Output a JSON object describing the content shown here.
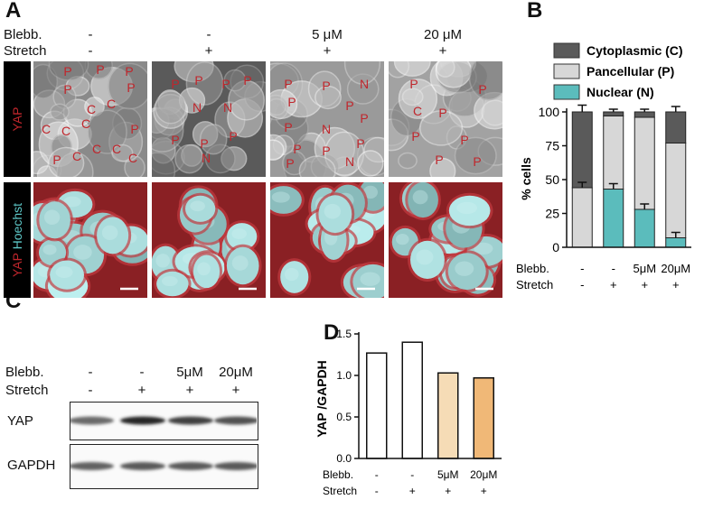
{
  "panels": {
    "a": "A",
    "b": "B",
    "c": "C",
    "d": "D"
  },
  "conditions": {
    "blebb_label": "Blebb.",
    "stretch_label": "Stretch",
    "blebb": [
      "-",
      "-",
      "5 μM",
      "20 μM"
    ],
    "stretch": [
      "-",
      "+",
      "+",
      "+"
    ]
  },
  "panel_a": {
    "row_labels": {
      "yap_top": "YAP",
      "yap": "YAP",
      "hoechst": "Hoechst"
    },
    "colors": {
      "yap": "#c0262c",
      "hoechst": "#5ec8c8"
    },
    "cell_annotations": [
      [
        "P",
        "P",
        "P",
        "P",
        "P",
        "C",
        "C",
        "C",
        "C",
        "C",
        "P",
        "C",
        "C",
        "C",
        "P",
        "C"
      ],
      [
        "P",
        "P",
        "P",
        "P",
        "N",
        "N",
        "P",
        "P",
        "P",
        "N"
      ],
      [
        "P",
        "P",
        "N",
        "P",
        "P",
        "P",
        "P",
        "N",
        "P",
        "P",
        "P",
        "N",
        "P"
      ],
      [
        "P",
        "P",
        "C",
        "P",
        "P",
        "P",
        "P",
        "P"
      ]
    ]
  },
  "panel_b": {
    "chart_data": {
      "type": "bar",
      "stacked": true,
      "categories": [
        "-/-",
        "-/+",
        "5μM/+",
        "20μM/+"
      ],
      "ylabel": "% cells",
      "ylim": [
        0,
        100
      ],
      "yticks": [
        "0",
        "25",
        "50",
        "75",
        "100"
      ],
      "legend_position": "top",
      "series": [
        {
          "name": "Nuclear (N)",
          "color": "#5bbcbc",
          "values": [
            0,
            43,
            28,
            7
          ]
        },
        {
          "name": "Pancellular (P)",
          "color": "#d7d7d7",
          "values": [
            44,
            54,
            68,
            70
          ]
        },
        {
          "name": "Cytoplasmic (C)",
          "color": "#5a5a5a",
          "values": [
            56,
            3,
            4,
            23
          ]
        }
      ],
      "x_rows": {
        "blebb_label": "Blebb.",
        "stretch_label": "Stretch",
        "blebb": [
          "-",
          "-",
          "5μM",
          "20μM"
        ],
        "stretch": [
          "-",
          "+",
          "+",
          "+"
        ]
      }
    }
  },
  "panel_c": {
    "blebb_label": "Blebb.",
    "stretch_label": "Stretch",
    "blebb": [
      "-",
      "-",
      "5μM",
      "20μM"
    ],
    "stretch": [
      "-",
      "+",
      "+",
      "+"
    ],
    "rows": [
      {
        "label": "YAP",
        "band_intensity": [
          0.55,
          0.95,
          0.8,
          0.7
        ]
      },
      {
        "label": "GAPDH",
        "band_intensity": [
          0.6,
          0.65,
          0.65,
          0.65
        ]
      }
    ]
  },
  "panel_d": {
    "chart_data": {
      "type": "bar",
      "categories": [
        "-/-",
        "-/+",
        "5μM/+",
        "20μM/+"
      ],
      "values": [
        1.27,
        1.4,
        1.03,
        0.97
      ],
      "colors": [
        "#ffffff",
        "#ffffff",
        "#f6dcb6",
        "#f0b877"
      ],
      "ylabel": "YAP /GAPDH",
      "ylim": [
        0,
        1.5
      ],
      "yticks": [
        "0.0",
        "0.5",
        "1.0",
        "1.5"
      ],
      "x_rows": {
        "blebb_label": "Blebb.",
        "stretch_label": "Stretch",
        "blebb": [
          "-",
          "-",
          "5μM",
          "20μM"
        ],
        "stretch": [
          "-",
          "+",
          "+",
          "+"
        ]
      }
    }
  }
}
